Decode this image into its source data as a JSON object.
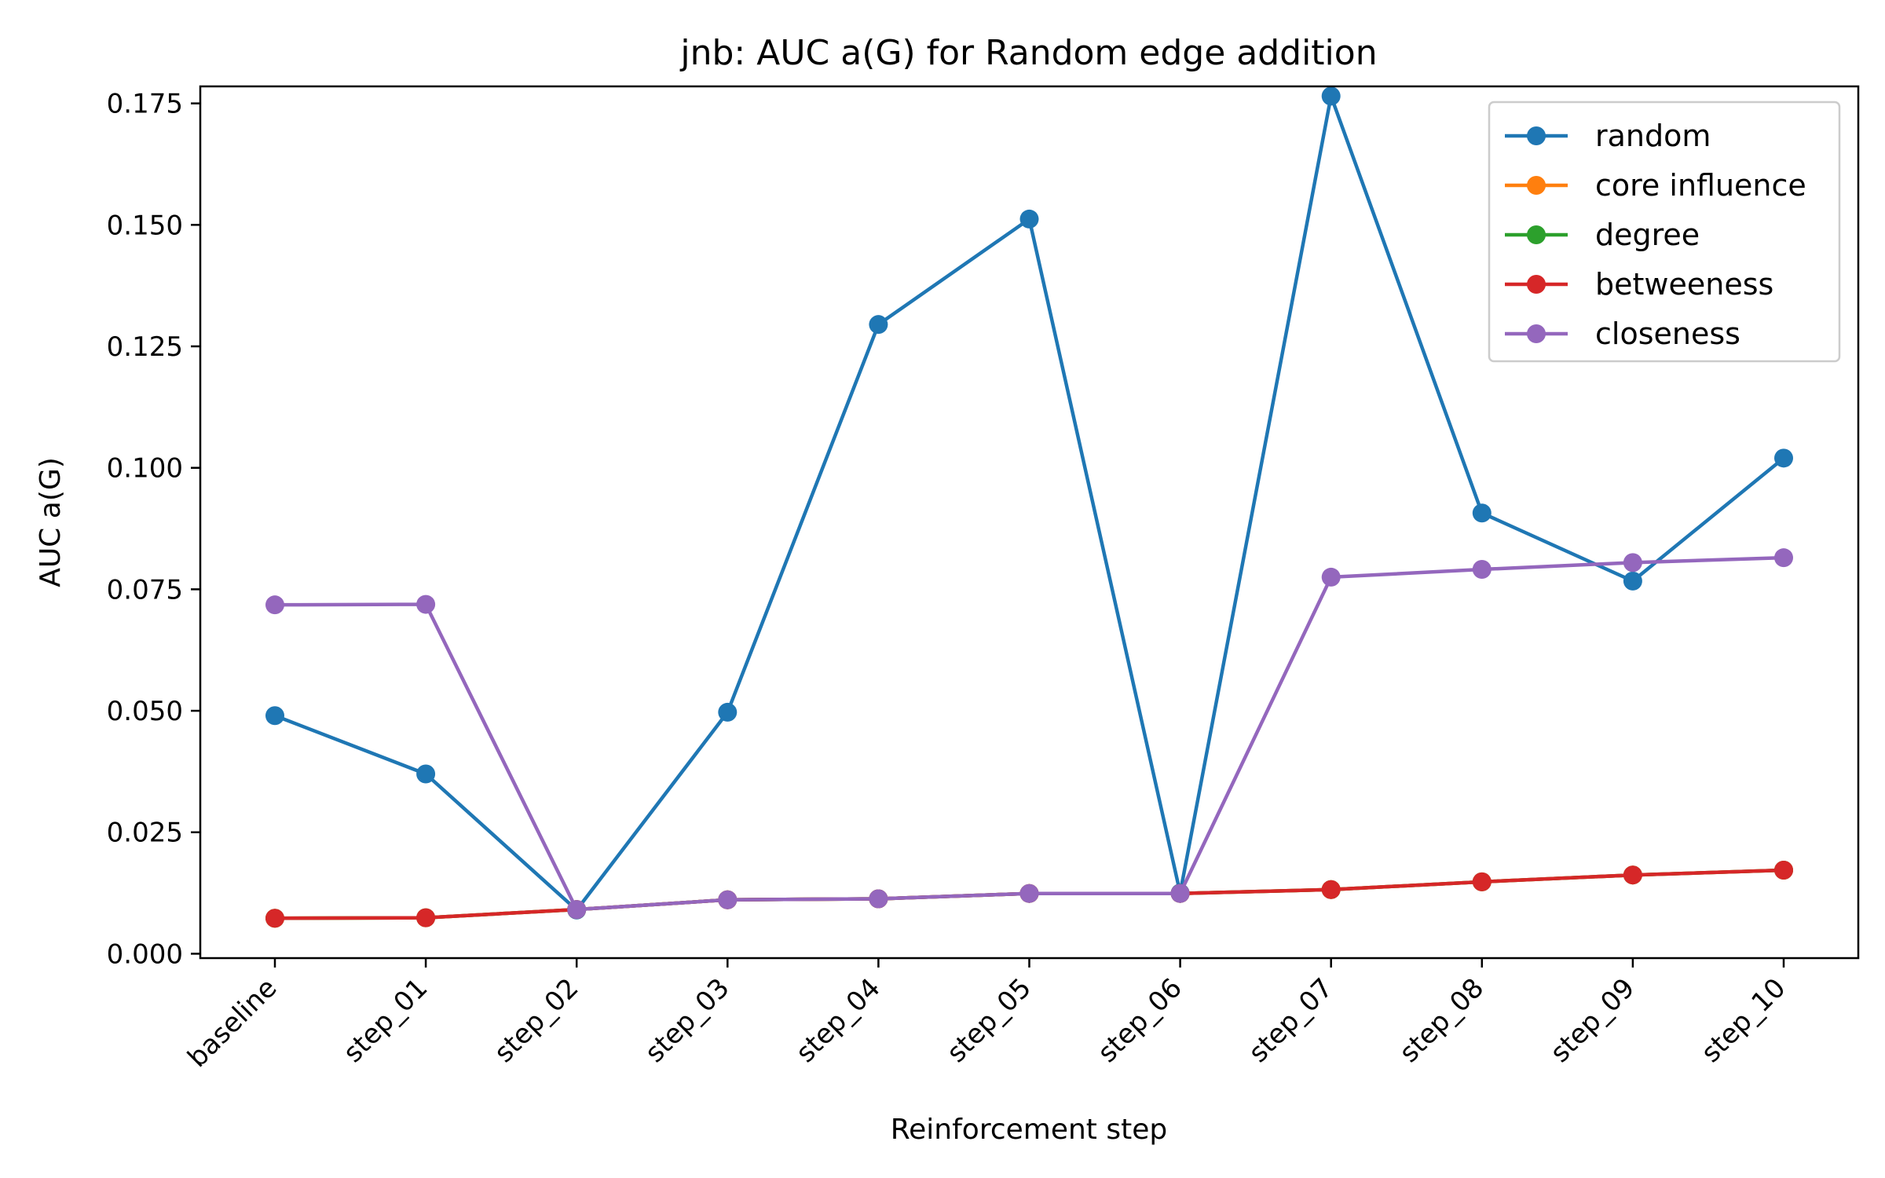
{
  "chart_data": {
    "type": "line",
    "title": "jnb: AUC a(G) for Random edge addition",
    "xlabel": "Reinforcement step",
    "ylabel": "AUC a(G)",
    "categories": [
      "baseline",
      "step_01",
      "step_02",
      "step_03",
      "step_04",
      "step_05",
      "step_06",
      "step_07",
      "step_08",
      "step_09",
      "step_10"
    ],
    "ylim": [
      -0.0009,
      0.1785
    ],
    "yticks": [
      "0.000",
      "0.025",
      "0.050",
      "0.075",
      "0.100",
      "0.125",
      "0.150",
      "0.175"
    ],
    "ytick_values": [
      0,
      0.025,
      0.05,
      0.075,
      0.1,
      0.125,
      0.15,
      0.175
    ],
    "legend_position": "top-right",
    "grid": false,
    "series": [
      {
        "name": "random",
        "color": "#1f77b4",
        "values": [
          0.049,
          0.037,
          0.009,
          0.0497,
          0.1295,
          0.1512,
          0.0125,
          0.1765,
          0.0907,
          0.0767,
          0.102
        ]
      },
      {
        "name": "core influence",
        "color": "#ff7f0e",
        "values": [
          0.0073,
          0.0074,
          0.0091,
          0.0111,
          0.0113,
          0.0124,
          0.0124,
          0.0132,
          0.0148,
          0.0162,
          0.0172
        ]
      },
      {
        "name": "degree",
        "color": "#2ca02c",
        "values": [
          0.0073,
          0.0074,
          0.0091,
          0.0111,
          0.0113,
          0.0124,
          0.0124,
          0.0132,
          0.0148,
          0.0162,
          0.0172
        ]
      },
      {
        "name": "betweeness",
        "color": "#d62728",
        "values": [
          0.0073,
          0.0074,
          0.0091,
          0.0111,
          0.0113,
          0.0124,
          0.0124,
          0.0132,
          0.0148,
          0.0162,
          0.0172
        ]
      },
      {
        "name": "closeness",
        "color": "#9467bd",
        "values": [
          0.0718,
          0.0719,
          0.0091,
          0.0111,
          0.0113,
          0.0124,
          0.0124,
          0.0775,
          0.0791,
          0.0805,
          0.0815
        ]
      }
    ]
  }
}
